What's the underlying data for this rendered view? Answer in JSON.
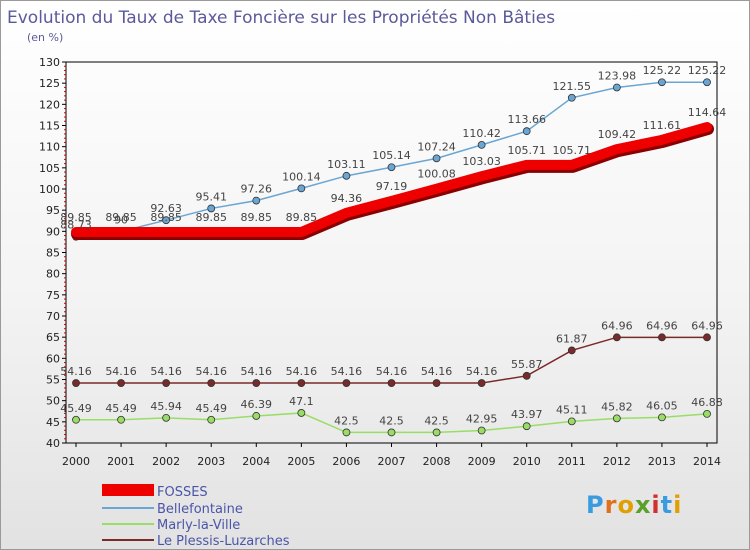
{
  "brand": {
    "name": "Proxiti",
    "letter_colors": [
      "#3a9be0",
      "#e0701a",
      "#e0a000",
      "#5aa02a",
      "#d03030",
      "#3a9be0",
      "#e0a000"
    ]
  },
  "chart_data": {
    "type": "line",
    "title": "Evolution du Taux de Taxe Foncière sur les Propriétés Non Bâties",
    "subtitle": "(en %)",
    "xlabel": "",
    "ylabel": "",
    "x": [
      "2000",
      "2001",
      "2002",
      "2003",
      "2004",
      "2005",
      "2006",
      "2007",
      "2008",
      "2009",
      "2010",
      "2011",
      "2012",
      "2013",
      "2014"
    ],
    "ylim": [
      40,
      130
    ],
    "yticks": [
      40,
      45,
      50,
      55,
      60,
      65,
      70,
      75,
      80,
      85,
      90,
      95,
      100,
      105,
      110,
      115,
      120,
      125,
      130
    ],
    "grid": false,
    "legend_position": "bottom-left",
    "series": [
      {
        "name": "FOSSES",
        "color": "#ee0000",
        "emphasis": true,
        "values": [
          89.85,
          89.85,
          89.85,
          89.85,
          89.85,
          89.85,
          94.36,
          97.19,
          100.08,
          103.03,
          105.71,
          105.71,
          109.42,
          111.61,
          114.64
        ],
        "labels": [
          "89.85",
          "89.85",
          "89.85",
          "89.85",
          "89.85",
          "89.85",
          "94.36",
          "97.19",
          "100.08",
          "103.03",
          "105.71",
          "105.71",
          "109.42",
          "111.61",
          "114.64"
        ]
      },
      {
        "name": "Bellefontaine",
        "color": "#6aa6d4",
        "emphasis": false,
        "values": [
          88.73,
          90.0,
          92.63,
          95.41,
          97.26,
          100.14,
          103.11,
          105.14,
          107.24,
          110.42,
          113.66,
          121.55,
          123.98,
          125.22,
          125.22
        ],
        "labels": [
          "88.73",
          "90",
          "92.63",
          "95.41",
          "97.26",
          "100.14",
          "103.11",
          "105.14",
          "107.24",
          "110.42",
          "113.66",
          "121.55",
          "123.98",
          "125.22",
          "125.22"
        ]
      },
      {
        "name": "Marly-la-Ville",
        "color": "#99dd66",
        "emphasis": false,
        "values": [
          45.49,
          45.49,
          45.94,
          45.49,
          46.39,
          47.1,
          42.5,
          42.5,
          42.5,
          42.95,
          43.97,
          45.11,
          45.82,
          46.05,
          46.88
        ],
        "labels": [
          "45.49",
          "45.49",
          "45.94",
          "45.49",
          "46.39",
          "47.1",
          "42.5",
          "42.5",
          "42.5",
          "42.95",
          "43.97",
          "45.11",
          "45.82",
          "46.05",
          "46.88"
        ]
      },
      {
        "name": "Le Plessis-Luzarches",
        "color": "#7a2a2a",
        "emphasis": false,
        "values": [
          54.16,
          54.16,
          54.16,
          54.16,
          54.16,
          54.16,
          54.16,
          54.16,
          54.16,
          54.16,
          55.87,
          61.87,
          64.96,
          64.96,
          64.96
        ],
        "labels": [
          "54.16",
          "54.16",
          "54.16",
          "54.16",
          "54.16",
          "54.16",
          "54.16",
          "54.16",
          "54.16",
          "54.16",
          "55.87",
          "61.87",
          "64.96",
          "64.96",
          "64.96"
        ]
      }
    ]
  }
}
